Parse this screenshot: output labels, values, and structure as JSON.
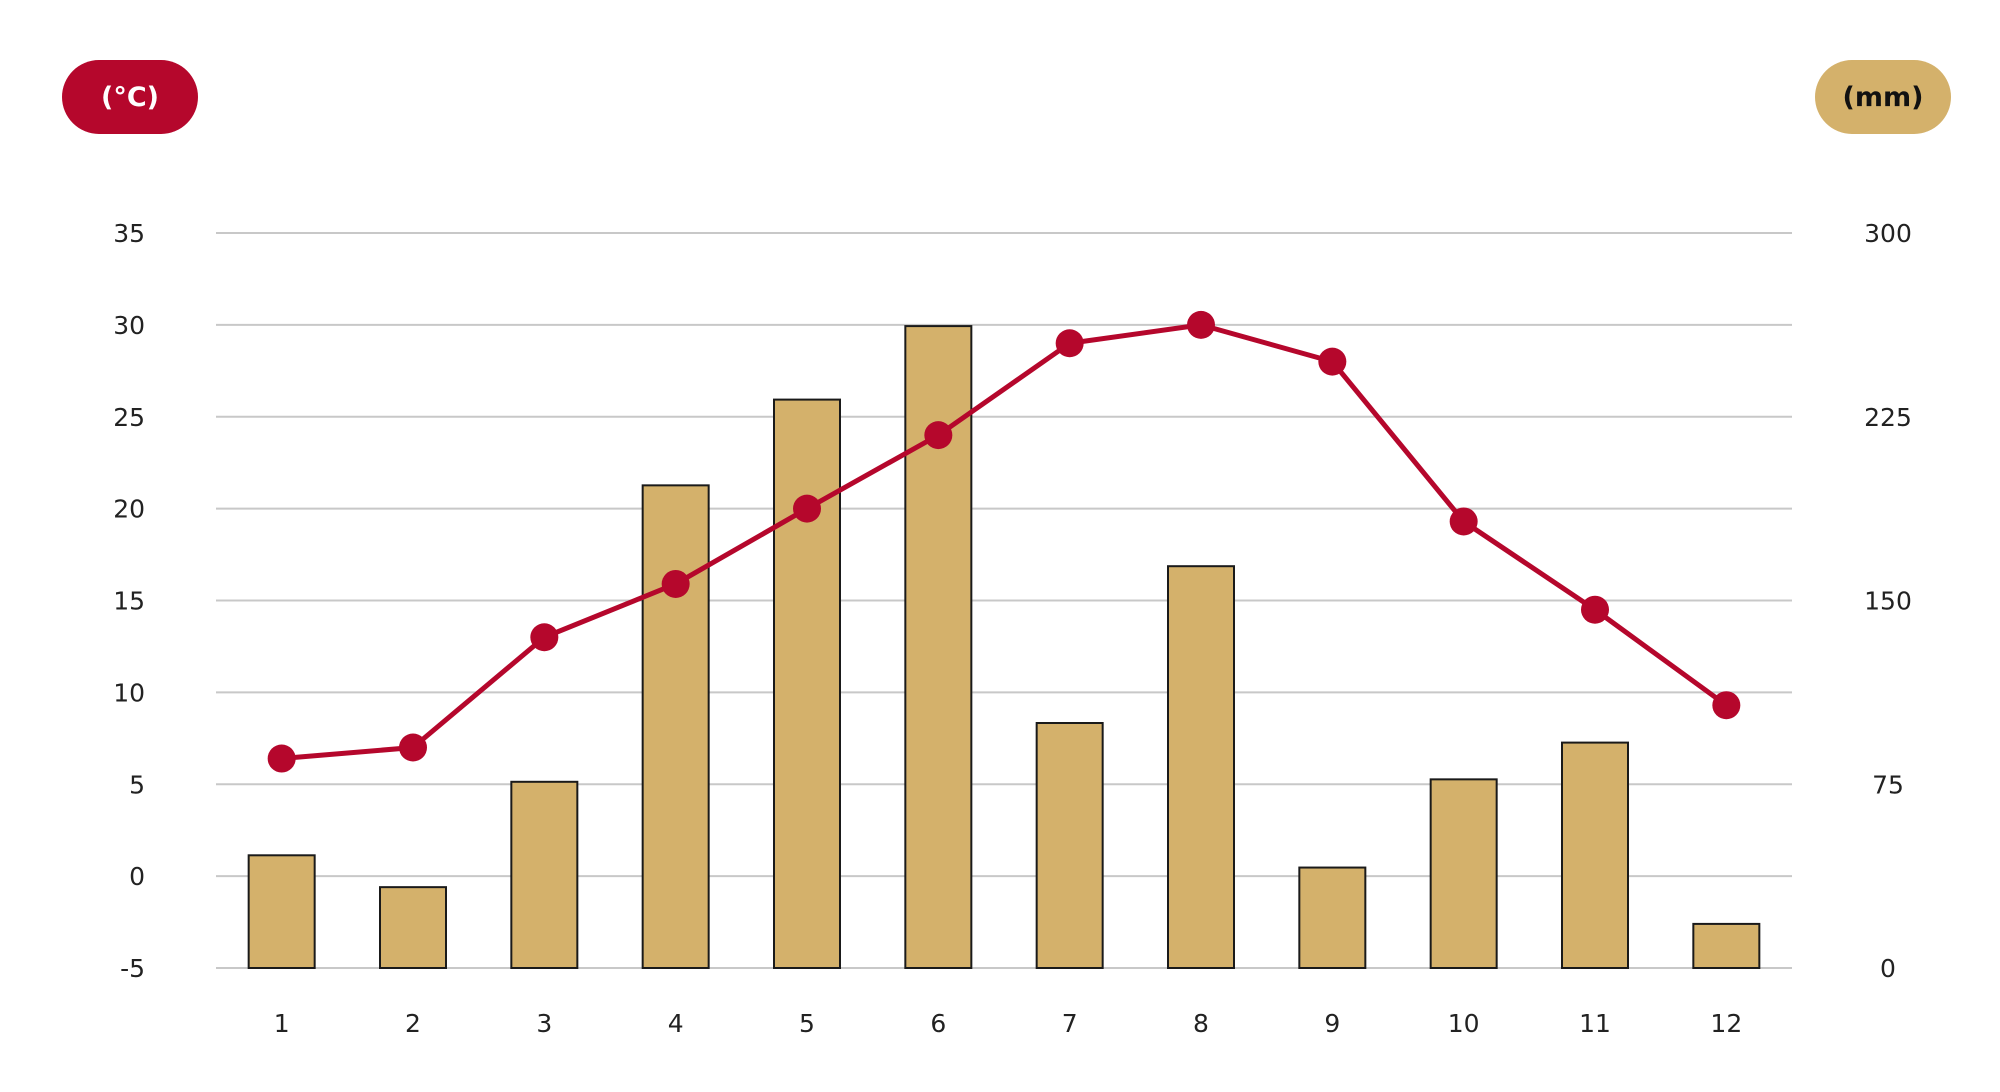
{
  "units": {
    "temperature": "(°C)",
    "precipitation": "(mm)"
  },
  "colors": {
    "temperature": "#b5072c",
    "precipitation": "#d4b16b",
    "bar_stroke": "#1a1a1a",
    "grid": "#c8c8c8"
  },
  "chart_data": {
    "type": "bar",
    "categories": [
      "1",
      "2",
      "3",
      "4",
      "5",
      "6",
      "7",
      "8",
      "9",
      "10",
      "11",
      "12"
    ],
    "series": [
      {
        "type": "bar",
        "axis": "right",
        "values": [
          46,
          33,
          76,
          197,
          232,
          262,
          100,
          164,
          41,
          77,
          92,
          18
        ]
      },
      {
        "type": "line",
        "axis": "left",
        "values": [
          6.4,
          7.0,
          13.0,
          15.9,
          20.0,
          24.0,
          29.0,
          30.0,
          28.0,
          19.3,
          14.5,
          9.3
        ]
      }
    ],
    "y_left": {
      "range": [
        -5,
        35
      ],
      "ticks": [
        "-5",
        "0",
        "5",
        "10",
        "15",
        "20",
        "25",
        "30",
        "35"
      ]
    },
    "y_right": {
      "range": [
        0,
        300
      ],
      "ticks": [
        "0",
        "75",
        "150",
        "225",
        "300"
      ]
    },
    "grid": true,
    "legend": "none"
  }
}
